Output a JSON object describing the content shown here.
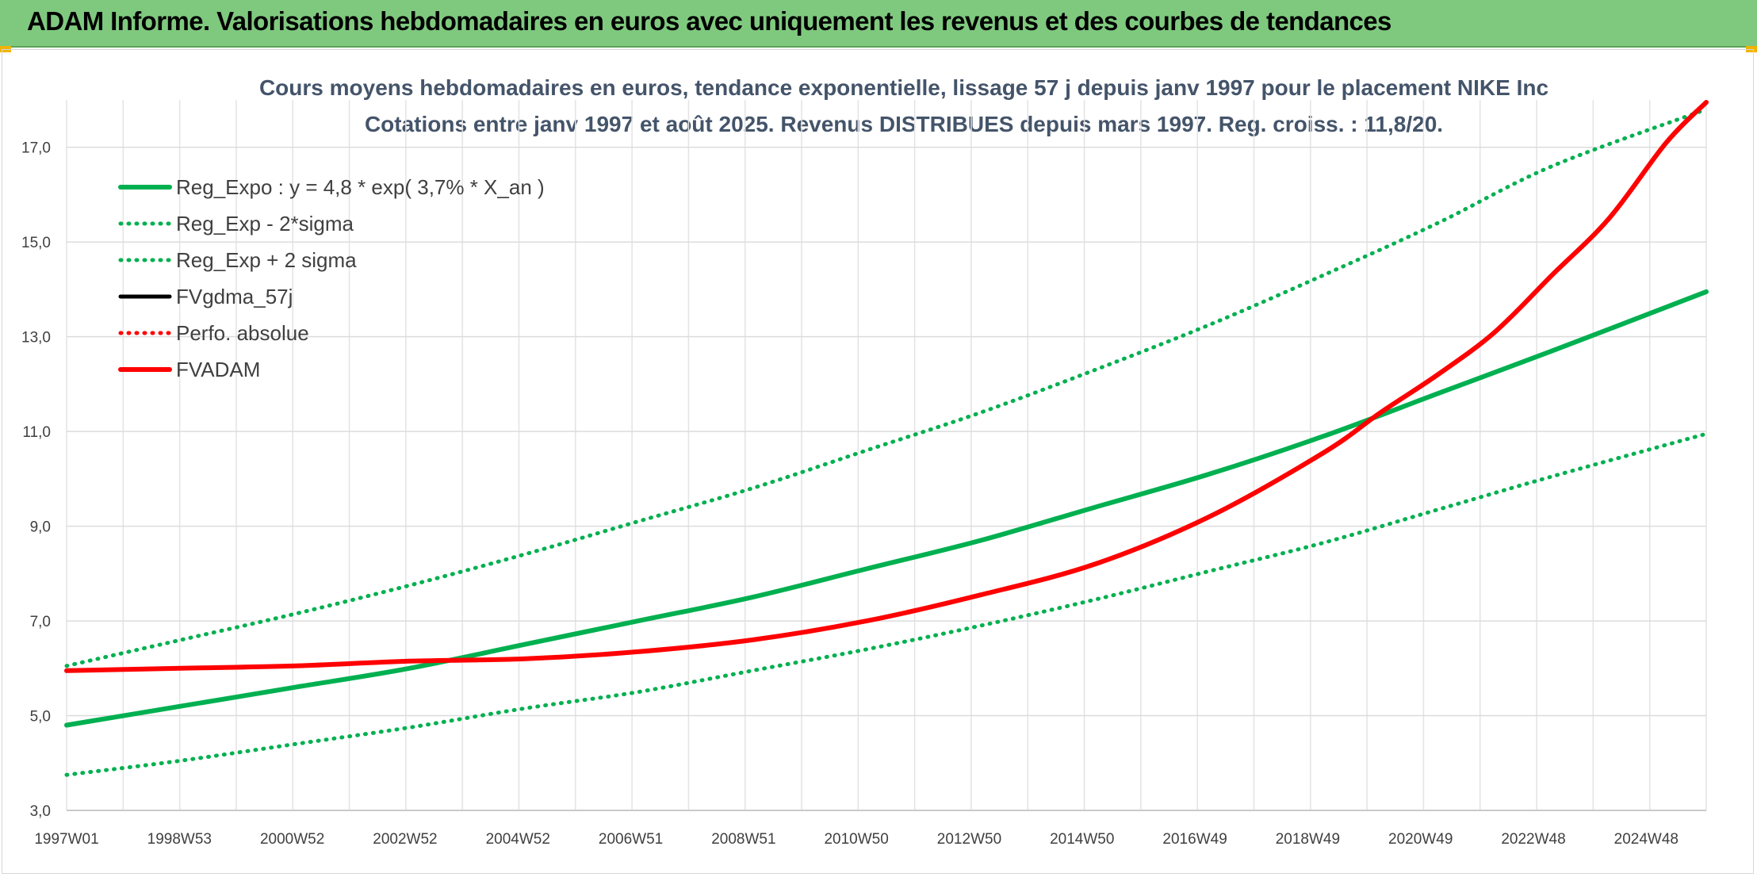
{
  "header": {
    "title": "ADAM Informe. Valorisations hebdomadaires en euros avec uniquement les revenus et des courbes de tendances",
    "accent_color": "#7fc97f",
    "corner_color": "#f0b400"
  },
  "chart_data": {
    "type": "line",
    "title": "Cours moyens hebdomadaires en euros, tendance exponentielle, lissage 57 j depuis janv 1997 pour le placement NIKE Inc",
    "subtitle": "Cotations entre janv 1997 et août 2025. Revenus DISTRIBUES depuis mars 1997. Reg. croiss. : 11,8/20.",
    "xlabel": "",
    "ylabel": "",
    "x_tick_labels": [
      "1997W01",
      "1998W53",
      "2000W52",
      "2002W52",
      "2004W52",
      "2006W51",
      "2008W51",
      "2010W50",
      "2012W50",
      "2014W50",
      "2016W49",
      "2018W49",
      "2020W49",
      "2022W48",
      "2024W48"
    ],
    "x_range": [
      1997.0,
      2025.7
    ],
    "ylim": [
      3.0,
      18.0
    ],
    "y_ticks": [
      "3,0",
      "5,0",
      "7,0",
      "9,0",
      "11,0",
      "13,0",
      "15,0",
      "17,0"
    ],
    "grid": true,
    "legend_placement": "top-left",
    "series": [
      {
        "name": "Reg_Expo : y = 4,8 * exp( 3,7% *  X_an )",
        "color": "#00b050",
        "style": "solid",
        "x": [
          1997,
          1999,
          2001,
          2003,
          2005,
          2007,
          2009,
          2011,
          2013,
          2015,
          2017,
          2019,
          2021,
          2023,
          2025.7
        ],
        "y": [
          4.8,
          5.2,
          5.6,
          6.0,
          6.5,
          7.0,
          7.5,
          8.1,
          8.7,
          9.4,
          10.1,
          10.9,
          11.8,
          12.7,
          13.95
        ]
      },
      {
        "name": "Reg_Exp - 2*sigma",
        "color": "#00b050",
        "style": "dotted",
        "x": [
          1997,
          1999,
          2001,
          2003,
          2005,
          2007,
          2009,
          2011,
          2013,
          2015,
          2017,
          2019,
          2021,
          2023,
          2025.7
        ],
        "y": [
          3.75,
          4.05,
          4.4,
          4.75,
          5.15,
          5.5,
          5.95,
          6.4,
          6.9,
          7.45,
          8.05,
          8.65,
          9.35,
          10.05,
          10.95
        ]
      },
      {
        "name": "Reg_Exp + 2 sigma",
        "color": "#00b050",
        "style": "dotted",
        "x": [
          1997,
          1999,
          2001,
          2003,
          2005,
          2007,
          2009,
          2011,
          2013,
          2015,
          2017,
          2019,
          2021,
          2023,
          2025.7
        ],
        "y": [
          6.05,
          6.6,
          7.15,
          7.75,
          8.4,
          9.1,
          9.8,
          10.6,
          11.4,
          12.3,
          13.25,
          14.3,
          15.4,
          16.6,
          17.8
        ]
      },
      {
        "name": "FVgdma_57j",
        "color": "#000000",
        "style": "solid",
        "x": [
          1997,
          1999,
          2001,
          2003,
          2005,
          2007,
          2009,
          2011,
          2013,
          2015,
          2017,
          2019,
          2020,
          2021,
          2022,
          2023,
          2024,
          2025,
          2025.7
        ],
        "y": [
          5.95,
          6.0,
          6.05,
          6.15,
          6.2,
          6.35,
          6.6,
          7.0,
          7.55,
          8.2,
          9.2,
          10.55,
          11.4,
          12.2,
          13.1,
          14.3,
          15.5,
          17.1,
          17.95
        ]
      },
      {
        "name": "Perfo. absolue",
        "color": "#ff0000",
        "style": "dotted",
        "x": [],
        "y": []
      },
      {
        "name": "FVADAM",
        "color": "#ff0000",
        "style": "solid",
        "x": [
          1997,
          1999,
          2001,
          2003,
          2005,
          2007,
          2009,
          2011,
          2013,
          2015,
          2017,
          2019,
          2020,
          2021,
          2022,
          2023,
          2024,
          2025,
          2025.7
        ],
        "y": [
          5.95,
          6.0,
          6.05,
          6.15,
          6.2,
          6.35,
          6.6,
          7.0,
          7.55,
          8.2,
          9.2,
          10.55,
          11.4,
          12.2,
          13.1,
          14.3,
          15.5,
          17.1,
          17.95
        ]
      }
    ]
  }
}
